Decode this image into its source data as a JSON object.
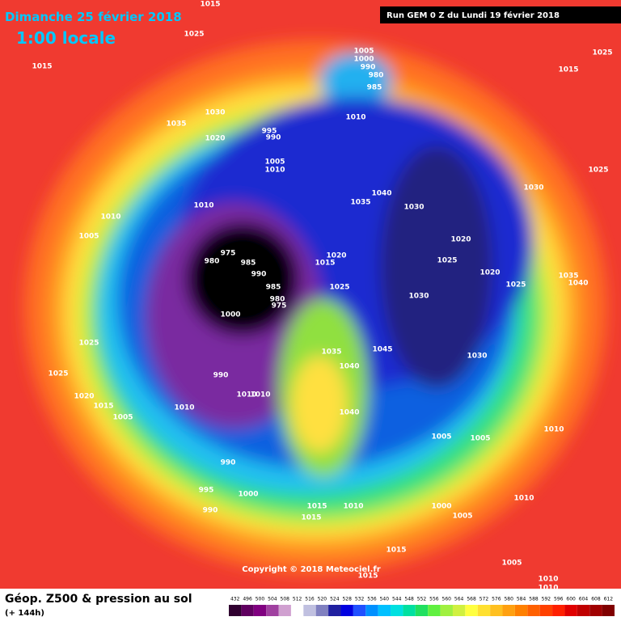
{
  "header": {
    "title": "Dimanche 25 février 2018",
    "time": "1:00 locale",
    "run": "Run GEM 0 Z du Lundi 19 février 2018"
  },
  "map": {
    "pressure_labels": [
      1015,
      1025,
      1015,
      1005,
      1000,
      990,
      980,
      985,
      1015,
      1035,
      1030,
      1020,
      995,
      990,
      1005,
      1010,
      1010,
      1025,
      1010,
      1010,
      1005,
      975,
      980,
      985,
      990,
      985,
      980,
      975,
      1000,
      1015,
      1020,
      1025,
      1035,
      1040,
      1030,
      1025,
      1030,
      1020,
      1025,
      1020,
      1025,
      1030,
      1035,
      1040,
      1025,
      1030,
      1035,
      1045,
      1040,
      1025,
      990,
      1010,
      1010,
      1020,
      1015,
      1005,
      1010,
      1040,
      1005,
      1005,
      1010,
      990,
      995,
      1000,
      990,
      1015,
      1010,
      1000,
      1015,
      1005,
      1010,
      1015,
      1005,
      1015,
      1010,
      1010
    ],
    "copyright": "Copyright © 2018 Meteociel.fr"
  },
  "legend": {
    "title": "Géop. Z500 & pression au sol",
    "subtitle": "(+ 144h)",
    "scale": [
      432,
      496,
      500,
      504,
      508,
      512,
      516,
      520,
      524,
      528,
      532,
      536,
      540,
      544,
      548,
      552,
      556,
      560,
      564,
      568,
      572,
      576,
      580,
      584,
      588,
      592,
      596,
      600,
      604,
      608,
      612
    ]
  }
}
